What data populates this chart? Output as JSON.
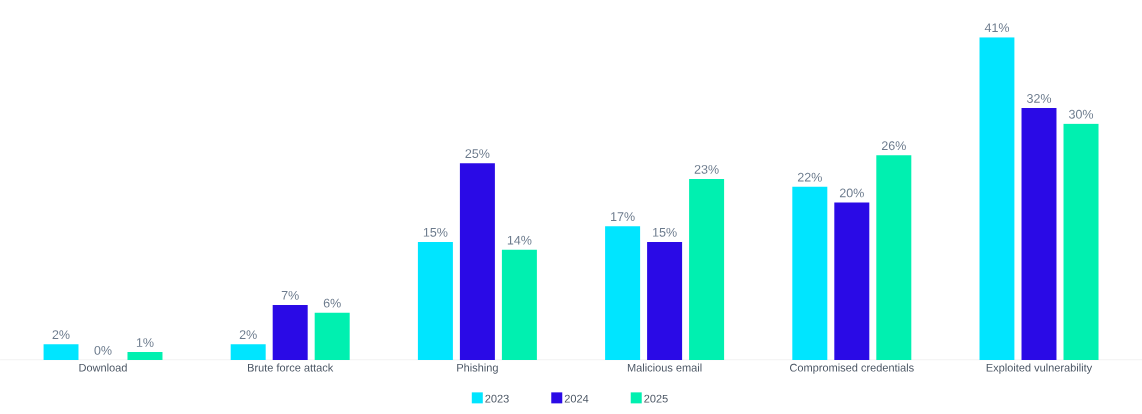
{
  "chart_data": {
    "type": "bar",
    "categories": [
      "Download",
      "Brute force attack",
      "Phishing",
      "Malicious email",
      "Compromised credentials",
      "Exploited vulnerability"
    ],
    "series": [
      {
        "name": "2023",
        "color": "#00e5ff",
        "values": [
          2,
          2,
          15,
          17,
          22,
          41
        ],
        "value_labels": [
          "2%",
          "2%",
          "15%",
          "17%",
          "22%",
          "41%"
        ]
      },
      {
        "name": "2024",
        "color": "#2a0ae6",
        "values": [
          0,
          7,
          25,
          15,
          20,
          32
        ],
        "value_labels": [
          "0%",
          "7%",
          "25%",
          "15%",
          "20%",
          "32%"
        ]
      },
      {
        "name": "2025",
        "color": "#00f0b0",
        "values": [
          1,
          6,
          14,
          23,
          26,
          30
        ],
        "value_labels": [
          "1%",
          "6%",
          "14%",
          "23%",
          "26%",
          "30%"
        ]
      }
    ],
    "legend": "bottom"
  }
}
